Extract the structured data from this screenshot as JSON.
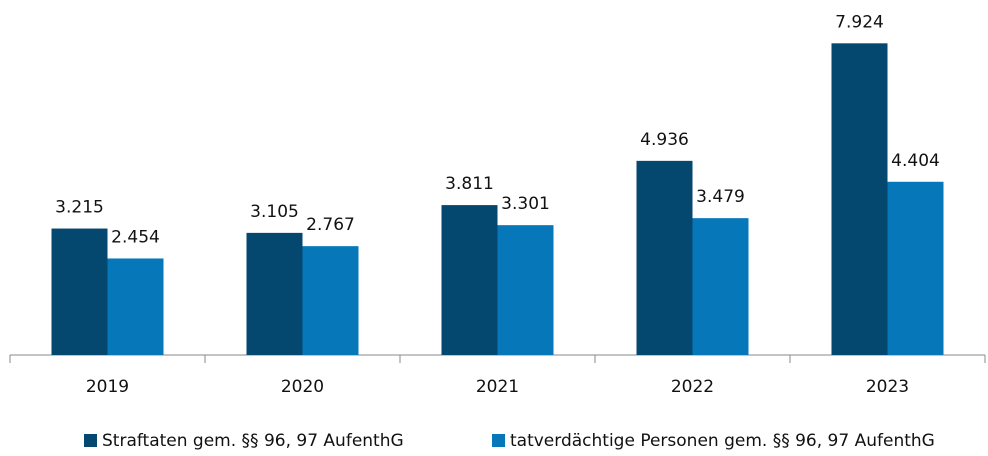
{
  "chart_data": {
    "type": "bar",
    "categories": [
      "2019",
      "2020",
      "2021",
      "2022",
      "2023"
    ],
    "series": [
      {
        "name": "Straftaten gem. §§ 96, 97 AufenthG",
        "color": "#04476f",
        "values": [
          3215,
          3105,
          3811,
          4936,
          7924
        ],
        "value_labels": [
          "3.215",
          "3.105",
          "3.811",
          "4.936",
          "7.924"
        ]
      },
      {
        "name": "tatverdächtige Personen gem. §§ 96, 97 AufenthG",
        "color": "#0677b8",
        "values": [
          2454,
          2767,
          3301,
          3479,
          4404
        ],
        "value_labels": [
          "2.454",
          "2.767",
          "3.301",
          "3.479",
          "4.404"
        ]
      }
    ],
    "ylim": [
      0,
      9000
    ],
    "legend": "bottom"
  }
}
